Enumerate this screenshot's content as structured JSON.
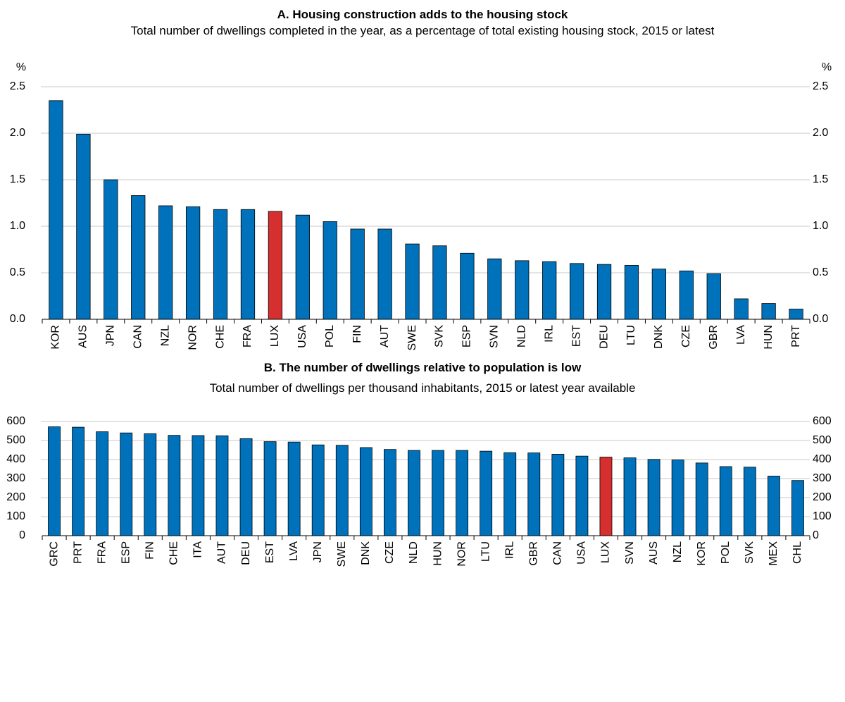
{
  "chart_data": [
    {
      "type": "bar",
      "title": "A. Housing construction adds to the housing stock",
      "subtitle": "Total number of dwellings completed in the year, as a percentage of total existing housing stock, 2015 or latest",
      "y_unit": "%",
      "categories": [
        "KOR",
        "AUS",
        "JPN",
        "CAN",
        "NZL",
        "NOR",
        "CHE",
        "FRA",
        "LUX",
        "USA",
        "POL",
        "FIN",
        "AUT",
        "SWE",
        "SVK",
        "ESP",
        "SVN",
        "NLD",
        "IRL",
        "EST",
        "DEU",
        "LTU",
        "DNK",
        "CZE",
        "GBR",
        "LVA",
        "HUN",
        "PRT"
      ],
      "values": [
        2.35,
        1.99,
        1.5,
        1.33,
        1.22,
        1.21,
        1.18,
        1.18,
        1.16,
        1.12,
        1.05,
        0.97,
        0.97,
        0.81,
        0.79,
        0.71,
        0.65,
        0.63,
        0.62,
        0.6,
        0.59,
        0.58,
        0.54,
        0.52,
        0.49,
        0.22,
        0.17,
        0.11
      ],
      "colors": [
        "#0072bc",
        "#0072bc",
        "#0072bc",
        "#0072bc",
        "#0072bc",
        "#0072bc",
        "#0072bc",
        "#0072bc",
        "#d62f2f",
        "#0072bc",
        "#0072bc",
        "#0072bc",
        "#0072bc",
        "#0072bc",
        "#0072bc",
        "#0072bc",
        "#0072bc",
        "#0072bc",
        "#0072bc",
        "#0072bc",
        "#0072bc",
        "#0072bc",
        "#0072bc",
        "#0072bc",
        "#0072bc",
        "#0072bc",
        "#0072bc",
        "#0072bc"
      ],
      "ylim": [
        0,
        2.5
      ],
      "yticks": [
        {
          "value": 0,
          "label": "0.0"
        },
        {
          "value": 0.5,
          "label": "0.5"
        },
        {
          "value": 1,
          "label": "1.0"
        },
        {
          "value": 1.5,
          "label": "1.5"
        },
        {
          "value": 2,
          "label": "2.0"
        },
        {
          "value": 2.5,
          "label": "2.5"
        }
      ],
      "grid": true
    },
    {
      "type": "bar",
      "title": "B. The number of dwellings relative to population is low",
      "subtitle": "Total number of dwellings per thousand inhabitants, 2015 or latest year available",
      "categories": [
        "GRC",
        "PRT",
        "FRA",
        "ESP",
        "FIN",
        "CHE",
        "ITA",
        "AUT",
        "DEU",
        "EST",
        "LVA",
        "JPN",
        "SWE",
        "DNK",
        "CZE",
        "NLD",
        "HUN",
        "NOR",
        "LTU",
        "IRL",
        "GBR",
        "CAN",
        "USA",
        "LUX",
        "SVN",
        "AUS",
        "NZL",
        "KOR",
        "POL",
        "SVK",
        "MEX",
        "CHL"
      ],
      "values": [
        572,
        570,
        546,
        540,
        536,
        527,
        526,
        525,
        510,
        494,
        492,
        477,
        475,
        463,
        453,
        448,
        448,
        448,
        444,
        436,
        435,
        428,
        418,
        413,
        409,
        401,
        398,
        382,
        363,
        360,
        313,
        290
      ],
      "colors": [
        "#0072bc",
        "#0072bc",
        "#0072bc",
        "#0072bc",
        "#0072bc",
        "#0072bc",
        "#0072bc",
        "#0072bc",
        "#0072bc",
        "#0072bc",
        "#0072bc",
        "#0072bc",
        "#0072bc",
        "#0072bc",
        "#0072bc",
        "#0072bc",
        "#0072bc",
        "#0072bc",
        "#0072bc",
        "#0072bc",
        "#0072bc",
        "#0072bc",
        "#0072bc",
        "#d62f2f",
        "#0072bc",
        "#0072bc",
        "#0072bc",
        "#0072bc",
        "#0072bc",
        "#0072bc",
        "#0072bc",
        "#0072bc"
      ],
      "ylim": [
        0,
        600
      ],
      "yticks": [
        0,
        100,
        200,
        300,
        400,
        500,
        600
      ],
      "grid": true
    }
  ]
}
